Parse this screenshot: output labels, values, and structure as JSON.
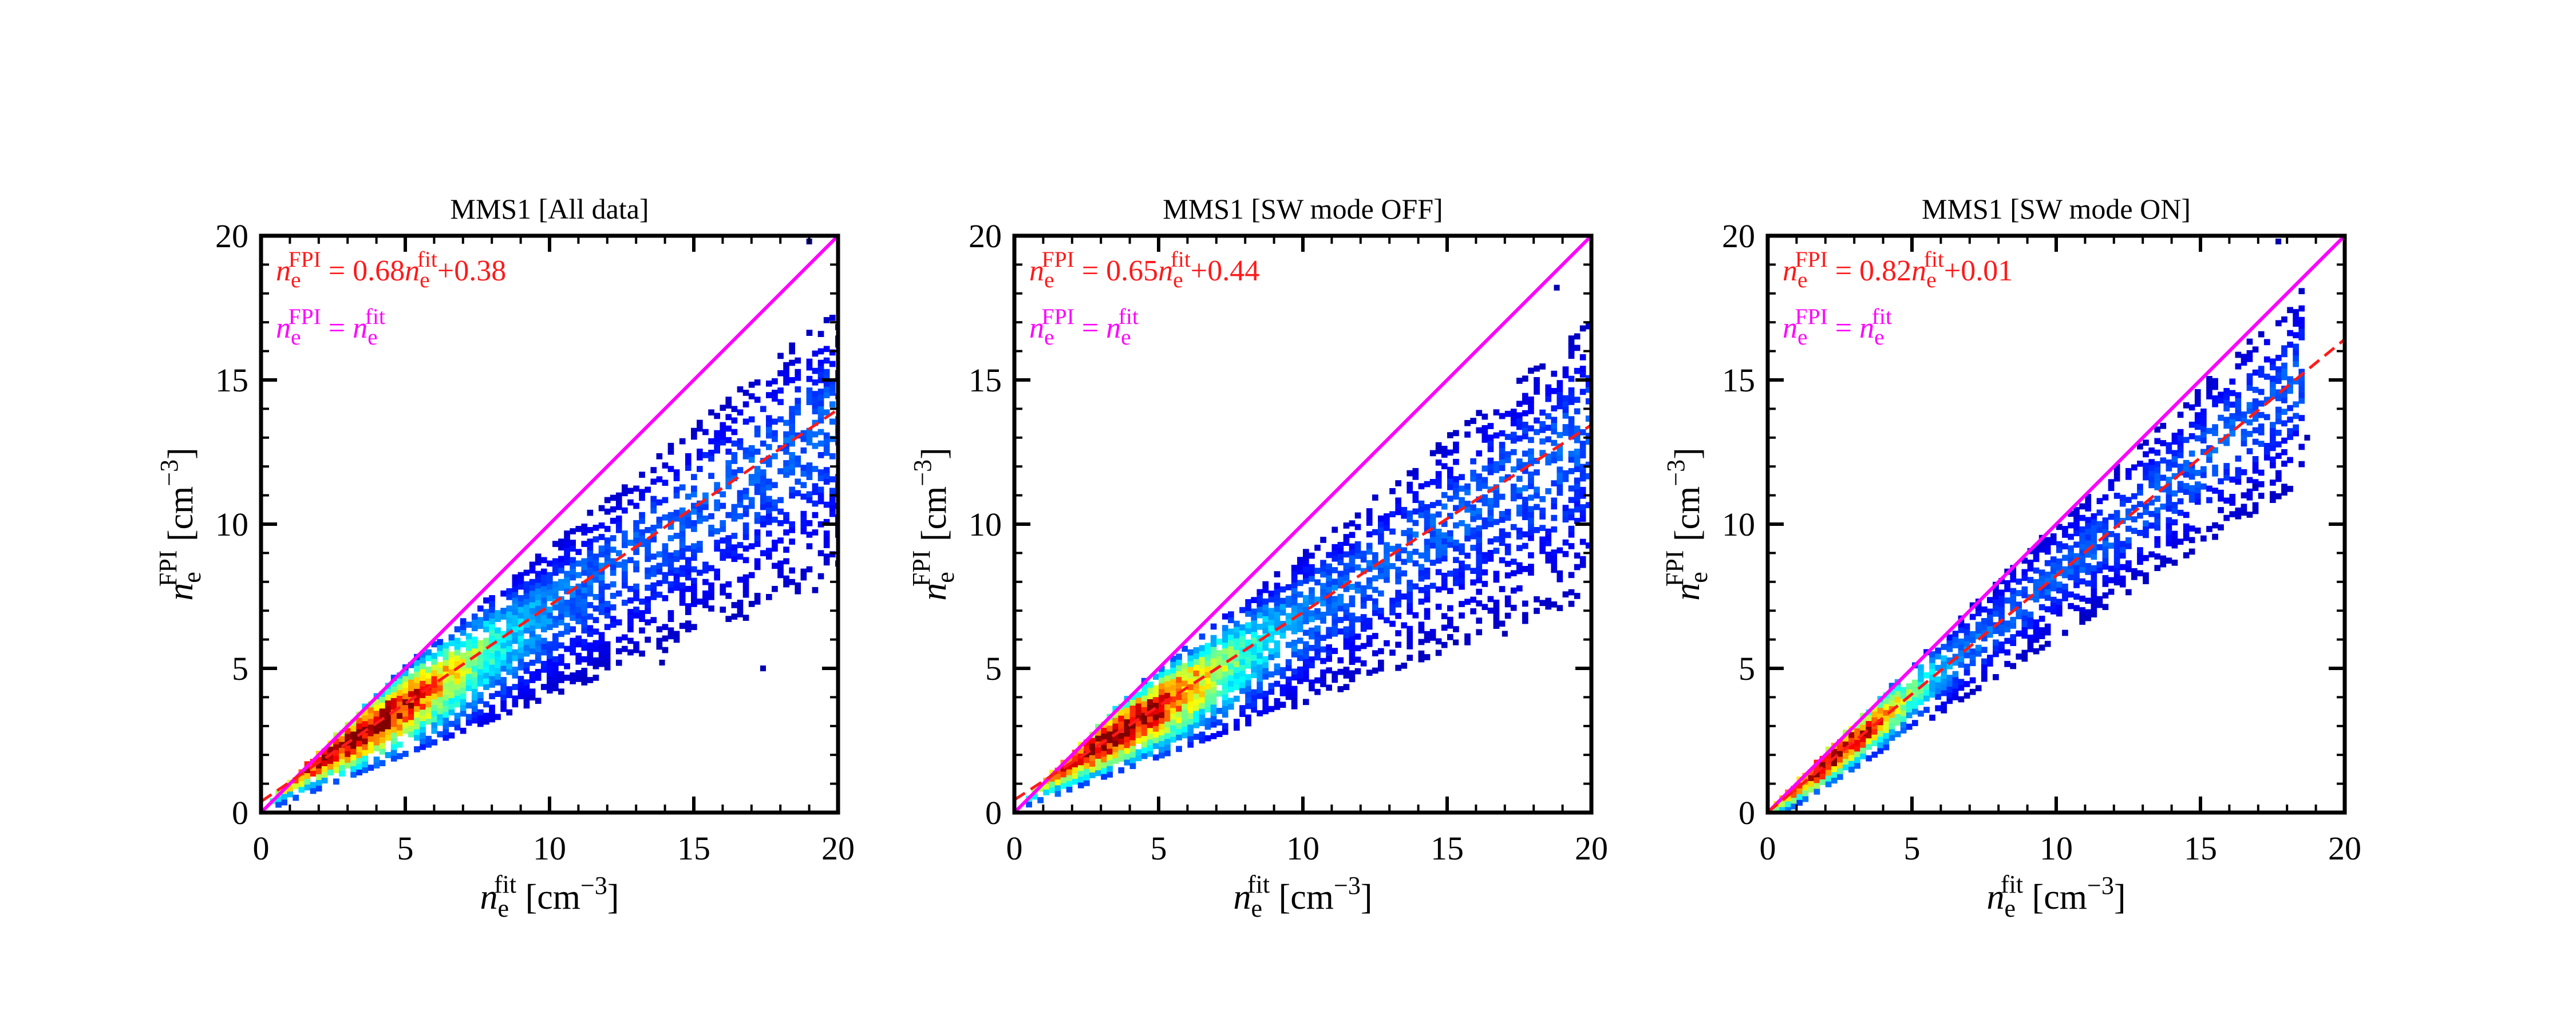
{
  "chart_data": [
    {
      "type": "heatmap",
      "title": "MMS1 [All data]",
      "xlabel": "n_e^fit [cm^-3]",
      "ylabel": "n_e^FPI [cm^-3]",
      "xlim": [
        0,
        20
      ],
      "ylim": [
        0,
        20
      ],
      "xticks": [
        0,
        5,
        10,
        15,
        20
      ],
      "yticks": [
        0,
        5,
        10,
        15,
        20
      ],
      "fit": {
        "slope": 0.68,
        "intercept": 0.38,
        "slope_text": "0.68",
        "intercept_text": "+0.38",
        "color": "#ff1a1a"
      },
      "identity": {
        "slope": 1,
        "intercept": 0,
        "color": "#ff00ff"
      },
      "annotations": {
        "fit_label": "n_e^FPI = 0.68 n_e^fit +0.38",
        "identity_label": "n_e^FPI = n_e^fit"
      },
      "density": {
        "x_start": 0.3,
        "x_end": 20,
        "spread_low": 0.28,
        "spread_high": 0.07,
        "peak_x": 3.5,
        "outlier_points": [
          [
            18.9,
            19.7
          ],
          [
            17.3,
            4.9
          ],
          [
            13.8,
            5.1
          ]
        ]
      }
    },
    {
      "type": "heatmap",
      "title": "MMS1 [SW mode OFF]",
      "xlabel": "n_e^fit [cm^-3]",
      "ylabel": "n_e^FPI [cm^-3]",
      "xlim": [
        0,
        20
      ],
      "ylim": [
        0,
        20
      ],
      "xticks": [
        0,
        5,
        10,
        15,
        20
      ],
      "yticks": [
        0,
        5,
        10,
        15,
        20
      ],
      "fit": {
        "slope": 0.65,
        "intercept": 0.44,
        "slope_text": "0.65",
        "intercept_text": "+0.44",
        "color": "#ff1a1a"
      },
      "identity": {
        "slope": 1,
        "intercept": 0,
        "color": "#ff00ff"
      },
      "annotations": {
        "fit_label": "n_e^FPI = 0.65 n_e^fit +0.44",
        "identity_label": "n_e^FPI = n_e^fit"
      },
      "density": {
        "x_start": 0.4,
        "x_end": 20,
        "spread_low": 0.28,
        "spread_high": 0.07,
        "peak_x": 3.5,
        "outlier_points": [
          [
            18.7,
            18.1
          ],
          [
            16.9,
            6.1
          ],
          [
            15.2,
            5.8
          ]
        ]
      }
    },
    {
      "type": "heatmap",
      "title": "MMS1 [SW mode ON]",
      "xlabel": "n_e^fit [cm^-3]",
      "ylabel": "n_e^FPI [cm^-3]",
      "xlim": [
        0,
        20
      ],
      "ylim": [
        0,
        20
      ],
      "xticks": [
        0,
        5,
        10,
        15,
        20
      ],
      "yticks": [
        0,
        5,
        10,
        15,
        20
      ],
      "fit": {
        "slope": 0.82,
        "intercept": 0.01,
        "slope_text": "0.82",
        "intercept_text": "+0.01",
        "color": "#ff1a1a"
      },
      "identity": {
        "slope": 1,
        "intercept": 0,
        "color": "#ff00ff"
      },
      "annotations": {
        "fit_label": "n_e^FPI = 0.82 n_e^fit +0.01",
        "identity_label": "n_e^FPI = n_e^fit"
      },
      "density": {
        "x_start": 0.2,
        "x_end": 18.5,
        "spread_low": 0.18,
        "spread_high": 0.06,
        "peak_x": 2.3,
        "outlier_points": [
          [
            17.6,
            19.7
          ],
          [
            18.6,
            12.9
          ],
          [
            16.8,
            11.2
          ]
        ]
      }
    }
  ]
}
